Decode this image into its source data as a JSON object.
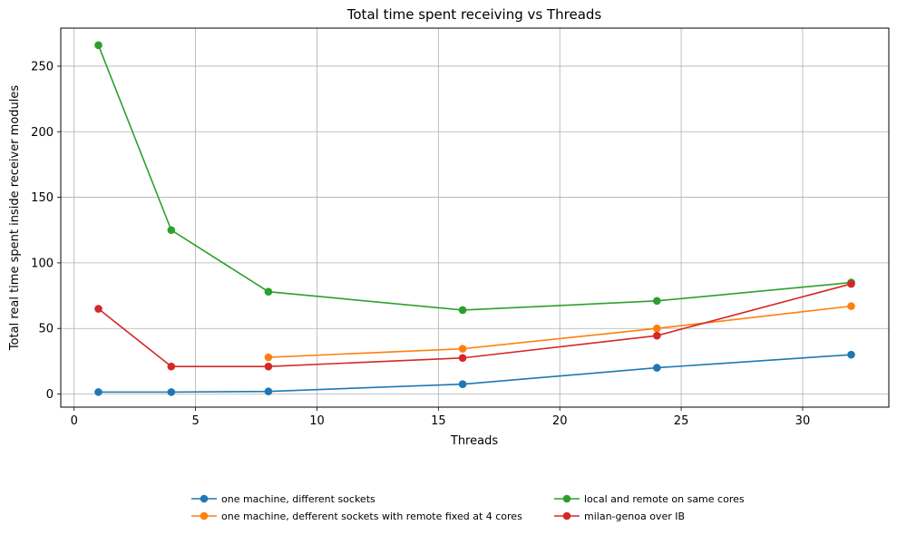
{
  "chart_data": {
    "type": "line",
    "title": "Total time spent receiving vs Threads",
    "xlabel": "Threads",
    "ylabel": "Total real time spent inside receiver modules",
    "xlim": [
      -0.55,
      33.55
    ],
    "ylim": [
      -10,
      279
    ],
    "xticks": [
      0,
      5,
      10,
      15,
      20,
      25,
      30
    ],
    "yticks": [
      0,
      50,
      100,
      150,
      200,
      250
    ],
    "grid": true,
    "legend_placement": "bottom-center, below plot, 2 columns",
    "series": [
      {
        "name": "one machine, different sockets",
        "color": "#1f77b4",
        "x": [
          1,
          4,
          8,
          16,
          24,
          32
        ],
        "y": [
          1.5,
          1.5,
          2,
          7.5,
          20,
          30
        ]
      },
      {
        "name": "one machine, defferent sockets with remote fixed at 4 cores",
        "color": "#ff7f0e",
        "x": [
          8,
          16,
          24,
          32
        ],
        "y": [
          28,
          34.5,
          50,
          67
        ]
      },
      {
        "name": "local and remote on same cores",
        "color": "#2ca02c",
        "x": [
          1,
          4,
          8,
          16,
          24,
          32
        ],
        "y": [
          266,
          125,
          78,
          64,
          71,
          85
        ]
      },
      {
        "name": "milan-genoa over IB",
        "color": "#d62728",
        "x": [
          1,
          4,
          8,
          16,
          24,
          32
        ],
        "y": [
          65,
          21,
          21,
          27.5,
          44.5,
          84
        ]
      }
    ]
  }
}
